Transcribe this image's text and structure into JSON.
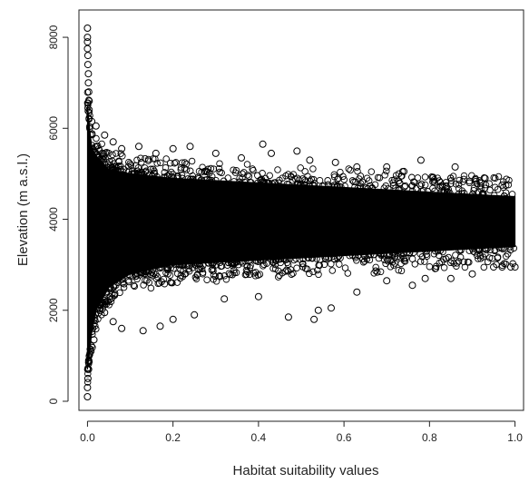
{
  "chart_data": {
    "type": "scatter",
    "title": "",
    "xlabel": "Habitat suitability values",
    "ylabel": "Elevation (m a.s.l.)",
    "xlim": [
      -0.02,
      1.02
    ],
    "ylim": [
      -200,
      8600
    ],
    "x_ticks": [
      0.0,
      0.2,
      0.4,
      0.6,
      0.8,
      1.0
    ],
    "x_tick_labels": [
      "0.0",
      "0.2",
      "0.4",
      "0.6",
      "0.8",
      "1.0"
    ],
    "y_ticks": [
      0,
      2000,
      4000,
      6000,
      8000
    ],
    "y_tick_labels": [
      "0",
      "2000",
      "4000",
      "6000",
      "8000"
    ],
    "marker": "open-circle",
    "grid": false,
    "legend": "none",
    "point_color": "#000000",
    "dense_envelope": {
      "x": [
        0.0,
        0.005,
        0.01,
        0.02,
        0.05,
        0.1,
        0.2,
        0.3,
        0.4,
        0.5,
        0.6,
        0.7,
        0.8,
        0.9,
        1.0
      ],
      "upper": [
        6500,
        6000,
        5600,
        5400,
        5100,
        5000,
        4900,
        4850,
        4800,
        4750,
        4700,
        4650,
        4600,
        4550,
        4500
      ],
      "lower": [
        700,
        1100,
        1500,
        2000,
        2500,
        2800,
        3000,
        3050,
        3100,
        3150,
        3200,
        3250,
        3300,
        3350,
        3400
      ]
    },
    "points": [
      {
        "x": 0.0,
        "y": 8200
      },
      {
        "x": 0.0,
        "y": 8000
      },
      {
        "x": 0.0,
        "y": 7900
      },
      {
        "x": 0.0,
        "y": 7750
      },
      {
        "x": 0.001,
        "y": 7600
      },
      {
        "x": 0.001,
        "y": 7400
      },
      {
        "x": 0.002,
        "y": 7200
      },
      {
        "x": 0.002,
        "y": 7000
      },
      {
        "x": 0.003,
        "y": 6800
      },
      {
        "x": 0.004,
        "y": 6600
      },
      {
        "x": 0.0,
        "y": 100
      },
      {
        "x": 0.0,
        "y": 300
      },
      {
        "x": 0.001,
        "y": 500
      },
      {
        "x": 0.002,
        "y": 700
      },
      {
        "x": 0.003,
        "y": 900
      },
      {
        "x": 0.008,
        "y": 1100
      },
      {
        "x": 0.015,
        "y": 1350
      },
      {
        "x": 0.01,
        "y": 6150
      },
      {
        "x": 0.02,
        "y": 6050
      },
      {
        "x": 0.04,
        "y": 5850
      },
      {
        "x": 0.06,
        "y": 5700
      },
      {
        "x": 0.08,
        "y": 5550
      },
      {
        "x": 0.12,
        "y": 5600
      },
      {
        "x": 0.16,
        "y": 5450
      },
      {
        "x": 0.2,
        "y": 5550
      },
      {
        "x": 0.24,
        "y": 5600
      },
      {
        "x": 0.3,
        "y": 5450
      },
      {
        "x": 0.36,
        "y": 5350
      },
      {
        "x": 0.41,
        "y": 5650
      },
      {
        "x": 0.43,
        "y": 5450
      },
      {
        "x": 0.49,
        "y": 5500
      },
      {
        "x": 0.52,
        "y": 5300
      },
      {
        "x": 0.58,
        "y": 5250
      },
      {
        "x": 0.63,
        "y": 5150
      },
      {
        "x": 0.7,
        "y": 5150
      },
      {
        "x": 0.74,
        "y": 5050
      },
      {
        "x": 0.78,
        "y": 5300
      },
      {
        "x": 0.86,
        "y": 5150
      },
      {
        "x": 0.93,
        "y": 4900
      },
      {
        "x": 0.97,
        "y": 4750
      },
      {
        "x": 0.04,
        "y": 1950
      },
      {
        "x": 0.06,
        "y": 1750
      },
      {
        "x": 0.08,
        "y": 1600
      },
      {
        "x": 0.13,
        "y": 1550
      },
      {
        "x": 0.17,
        "y": 1650
      },
      {
        "x": 0.2,
        "y": 1800
      },
      {
        "x": 0.25,
        "y": 1900
      },
      {
        "x": 0.32,
        "y": 2250
      },
      {
        "x": 0.4,
        "y": 2300
      },
      {
        "x": 0.47,
        "y": 1850
      },
      {
        "x": 0.53,
        "y": 1800
      },
      {
        "x": 0.54,
        "y": 2000
      },
      {
        "x": 0.57,
        "y": 2050
      },
      {
        "x": 0.63,
        "y": 2400
      },
      {
        "x": 0.7,
        "y": 2650
      },
      {
        "x": 0.76,
        "y": 2550
      },
      {
        "x": 0.79,
        "y": 2700
      },
      {
        "x": 0.85,
        "y": 2700
      },
      {
        "x": 0.9,
        "y": 2800
      },
      {
        "x": 0.95,
        "y": 2950
      },
      {
        "x": 0.97,
        "y": 2950
      },
      {
        "x": 0.99,
        "y": 2950
      },
      {
        "x": 1.0,
        "y": 2950
      }
    ]
  }
}
